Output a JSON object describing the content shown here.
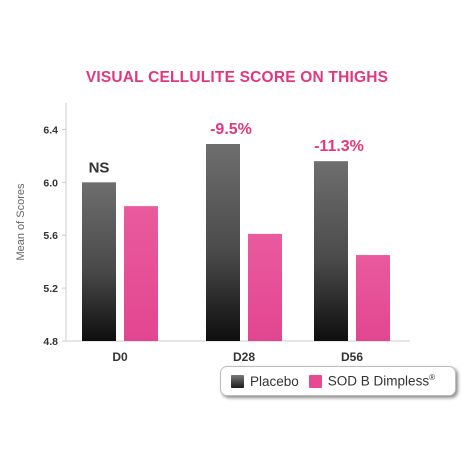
{
  "chart_data": {
    "type": "bar",
    "title": "VISUAL CELLULITE SCORE ON THIGHS",
    "ylabel": "Mean of Scores",
    "xlabel": "",
    "categories": [
      "D0",
      "D28",
      "D56"
    ],
    "series": [
      {
        "name": "Placebo",
        "color": "#555555",
        "values": [
          6.0,
          6.29,
          6.16
        ]
      },
      {
        "name": "SOD B Dimpless®",
        "color": "#e54a92",
        "values": [
          5.82,
          5.61,
          5.45
        ]
      }
    ],
    "ylim": [
      4.8,
      6.6
    ],
    "yticks": [
      "4.8",
      "5.2",
      "5.6",
      "6.0",
      "6.4"
    ],
    "grid": false,
    "legend_position": "bottom-right",
    "annotations": [
      {
        "text": "NS",
        "category": "D0",
        "color": "#333333"
      },
      {
        "text": "-9.5%",
        "category": "D28",
        "color": "#e2377f"
      },
      {
        "text": "-11.3%",
        "category": "D56",
        "color": "#e2377f"
      }
    ]
  },
  "legend": {
    "placebo_label": "Placebo",
    "sod_label": "SOD B Dimpless",
    "sod_mark": "®"
  }
}
